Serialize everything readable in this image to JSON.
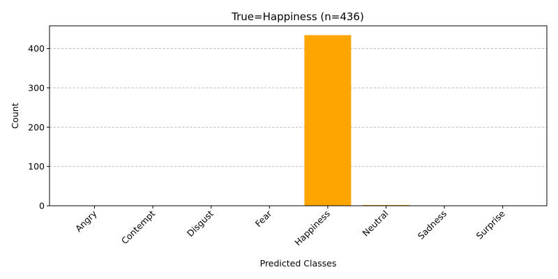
{
  "chart_data": {
    "type": "bar",
    "title": "True=Happiness  (n=436)",
    "xlabel": "Predicted Classes",
    "ylabel": "Count",
    "categories": [
      "Angry",
      "Contempt",
      "Disgust",
      "Fear",
      "Happiness",
      "Neutral",
      "Sadness",
      "Surprise"
    ],
    "values": [
      0,
      0,
      0,
      0,
      434,
      2,
      0,
      0
    ],
    "ylim": [
      0,
      457.8
    ],
    "yticks": [
      0,
      100,
      200,
      300,
      400
    ],
    "grid": "y-dashed",
    "bar_color": "#ffa500"
  }
}
